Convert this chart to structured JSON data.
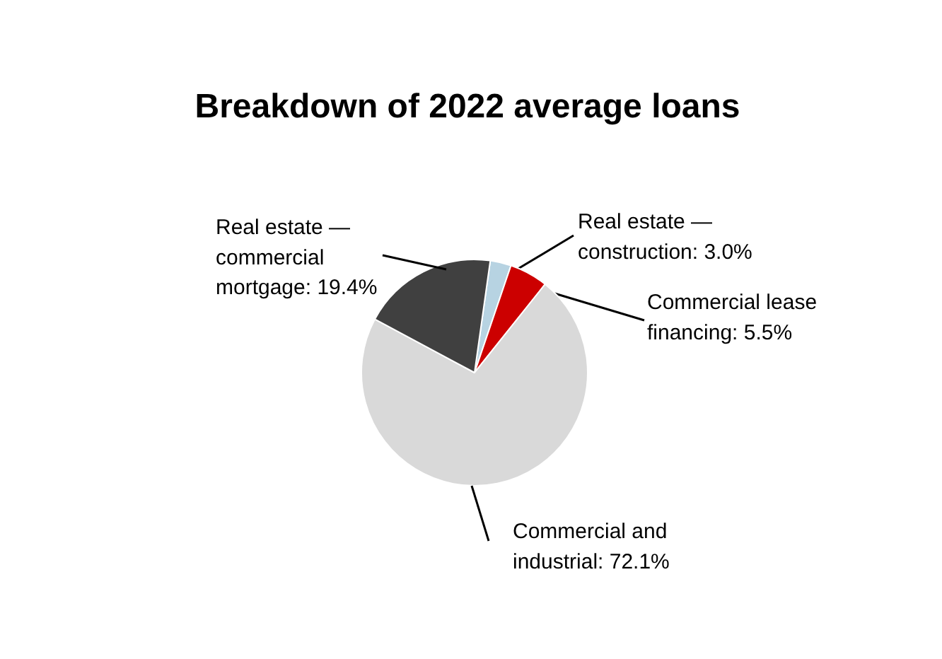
{
  "chart_data": {
    "type": "pie",
    "title": "Breakdown of 2022 average loans",
    "categories": [
      "Real estate — construction",
      "Commercial lease financing",
      "Commercial and industrial",
      "Real estate — commercial mortgage"
    ],
    "values": [
      3.0,
      5.5,
      72.1,
      19.4
    ],
    "colors": [
      "#b7d3e2",
      "#cc0000",
      "#d9d9d9",
      "#404040"
    ],
    "value_labels": [
      "3.0%",
      "5.5%",
      "72.1%",
      "19.4%"
    ]
  }
}
